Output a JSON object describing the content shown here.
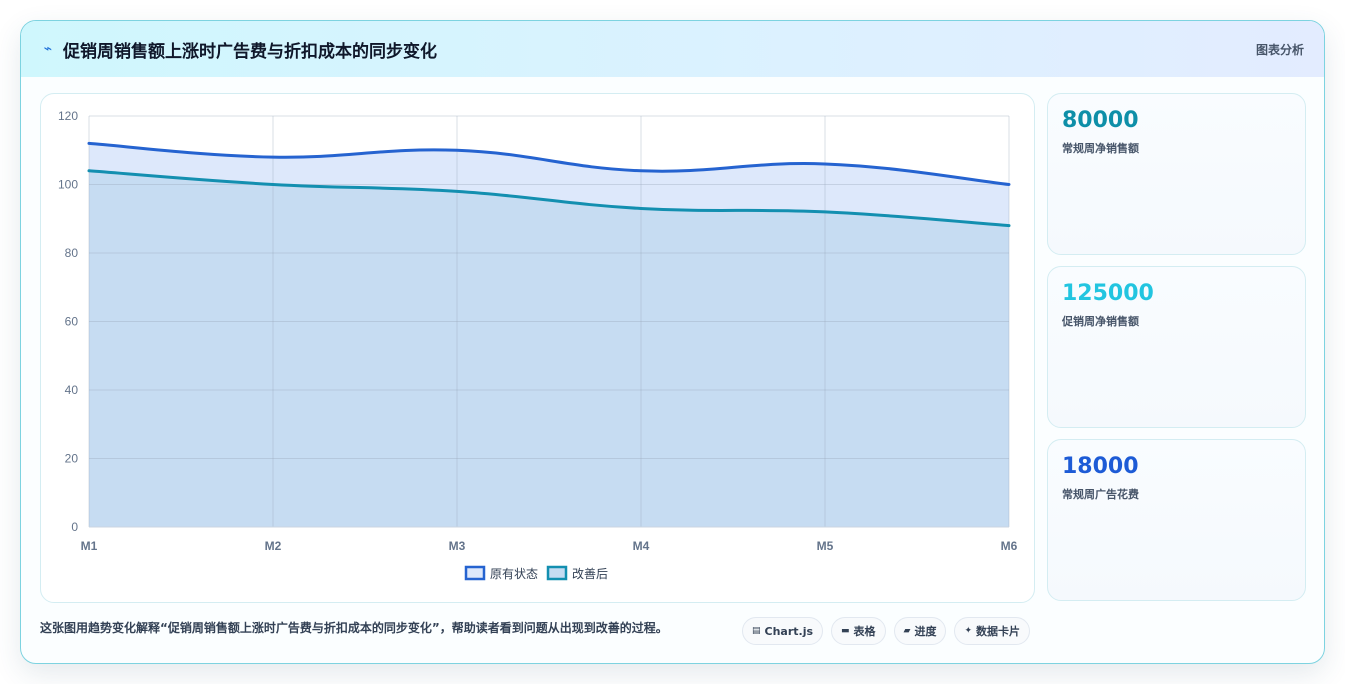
{
  "header": {
    "title": "促销周销售额上涨时广告费与折扣成本的同步变化",
    "title_icon": "trend-line-icon",
    "tag": "图表分析"
  },
  "chart_data": {
    "type": "area",
    "categories": [
      "M1",
      "M2",
      "M3",
      "M4",
      "M5",
      "M6"
    ],
    "series": [
      {
        "name": "原有状态",
        "values": [
          112,
          108,
          110,
          104,
          106,
          100
        ],
        "color": "#2563d0",
        "fill": "#dde8fb"
      },
      {
        "name": "改善后",
        "values": [
          104,
          100,
          98,
          93,
          92,
          88
        ],
        "color": "#138fb0",
        "fill": "#c6dcf2"
      }
    ],
    "ylim": [
      0,
      120
    ],
    "yticks": [
      0,
      20,
      40,
      60,
      80,
      100,
      120
    ],
    "grid": true,
    "legend_position": "bottom"
  },
  "stats": [
    {
      "value": "80000",
      "label": "常规周净销售额",
      "color": "#0e8fa8"
    },
    {
      "value": "125000",
      "label": "促销周净销售额",
      "color": "#22c5e0"
    },
    {
      "value": "18000",
      "label": "常规周广告花费",
      "color": "#1d5bd6"
    }
  ],
  "footer": {
    "note": "这张图用趋势变化解释“促销周销售额上涨时广告费与折扣成本的同步变化”，帮助读者看到问题从出现到改善的过程。",
    "chips": [
      {
        "icon": "chart-icon",
        "glyph": "▤",
        "label": "Chart.js"
      },
      {
        "icon": "table-icon",
        "glyph": "▬",
        "label": "表格"
      },
      {
        "icon": "progress-icon",
        "glyph": "▰",
        "label": "进度"
      },
      {
        "icon": "sparkle-icon",
        "glyph": "✦",
        "label": "数据卡片"
      }
    ]
  }
}
